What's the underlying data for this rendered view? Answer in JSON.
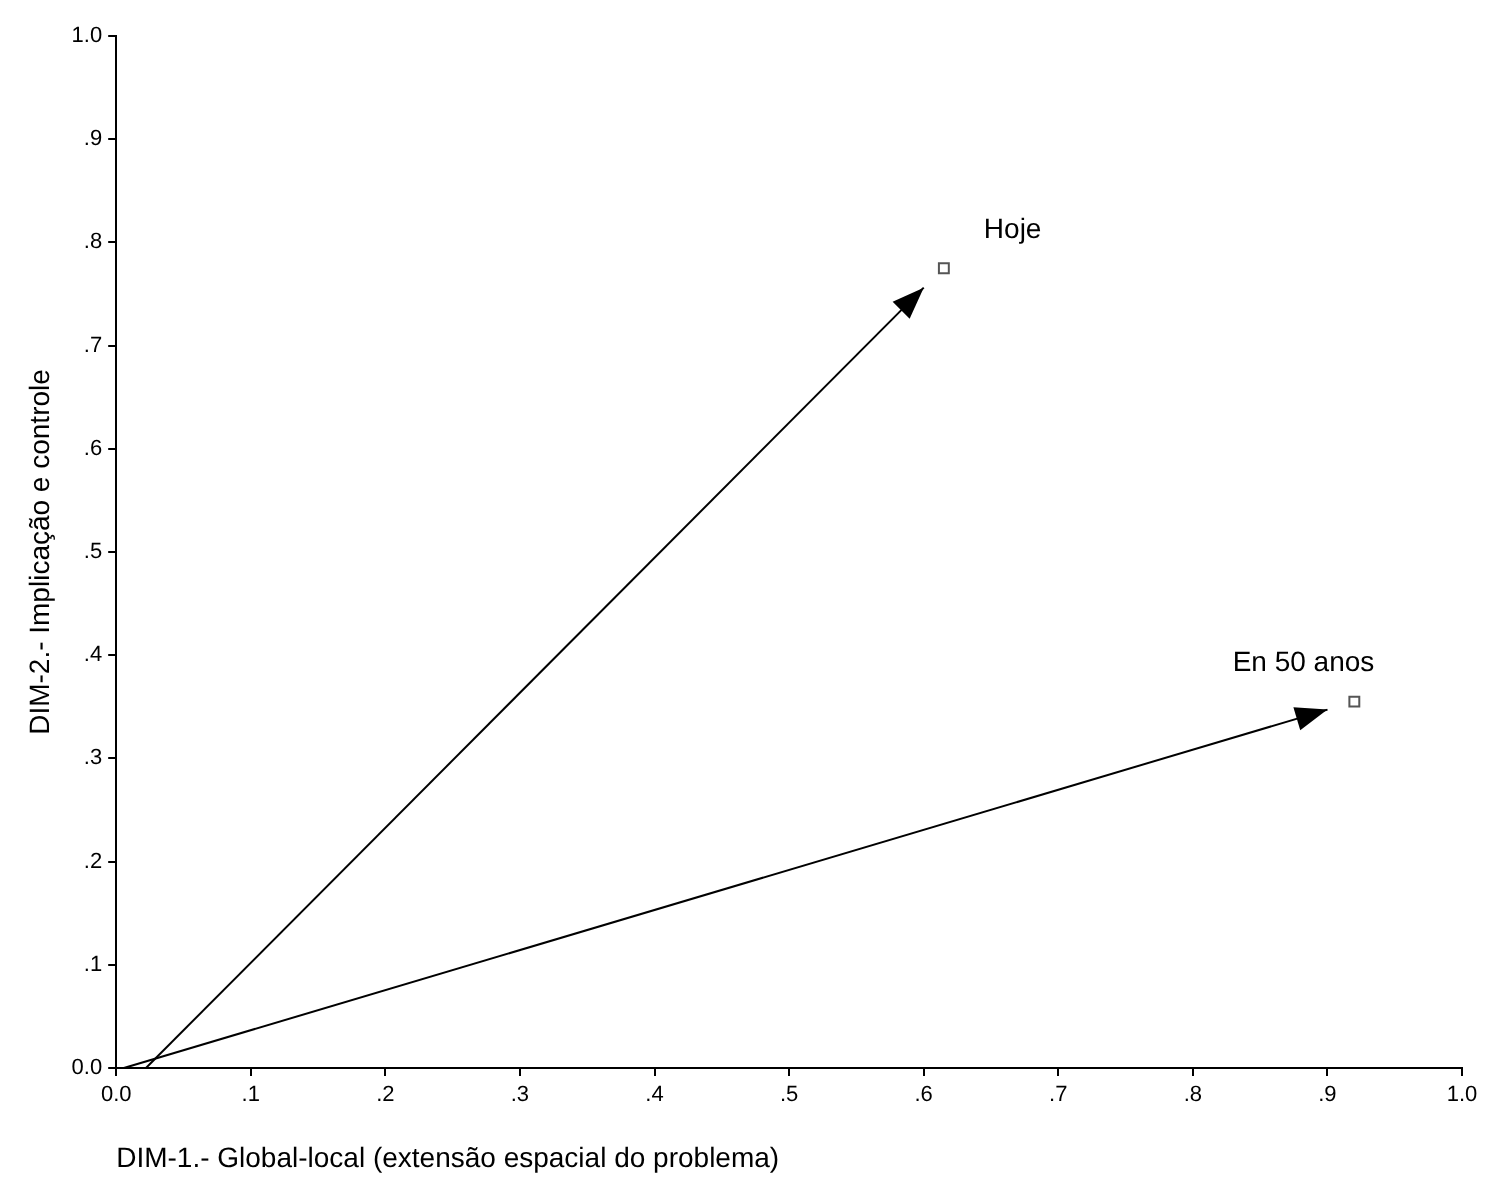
{
  "chart_data": {
    "type": "scatter",
    "xlabel": "DIM-1.- Global-local (extensão espacial do problema)",
    "ylabel": "DIM-2.- Implicação e controle",
    "series": [
      {
        "name": "Hoje",
        "color": "#555555",
        "x": [
          0.615
        ],
        "values": [
          0.775
        ]
      },
      {
        "name": "En 50 anos",
        "color": "#555555",
        "x": [
          0.92
        ],
        "values": [
          0.355
        ]
      }
    ],
    "xlim": [
      0,
      1
    ],
    "ylim": [
      0,
      1
    ],
    "xticks": [
      {
        "value": 0,
        "label": "0.0"
      },
      {
        "value": 0.1,
        "label": ".1"
      },
      {
        "value": 0.2,
        "label": ".2"
      },
      {
        "value": 0.3,
        "label": ".3"
      },
      {
        "value": 0.4,
        "label": ".4"
      },
      {
        "value": 0.5,
        "label": ".5"
      },
      {
        "value": 0.6,
        "label": ".6"
      },
      {
        "value": 0.7,
        "label": ".7"
      },
      {
        "value": 0.8,
        "label": ".8"
      },
      {
        "value": 0.9,
        "label": ".9"
      },
      {
        "value": 1,
        "label": "1.0"
      }
    ],
    "yticks": [
      {
        "value": 0,
        "label": "0.0"
      },
      {
        "value": 0.1,
        "label": ".1"
      },
      {
        "value": 0.2,
        "label": ".2"
      },
      {
        "value": 0.3,
        "label": ".3"
      },
      {
        "value": 0.4,
        "label": ".4"
      },
      {
        "value": 0.5,
        "label": ".5"
      },
      {
        "value": 0.6,
        "label": ".6"
      },
      {
        "value": 0.7,
        "label": ".7"
      },
      {
        "value": 0.8,
        "label": ".8"
      },
      {
        "value": 0.9,
        "label": ".9"
      },
      {
        "value": 1,
        "label": "1.0"
      }
    ],
    "grid": false,
    "legend": false,
    "marker": "square"
  }
}
